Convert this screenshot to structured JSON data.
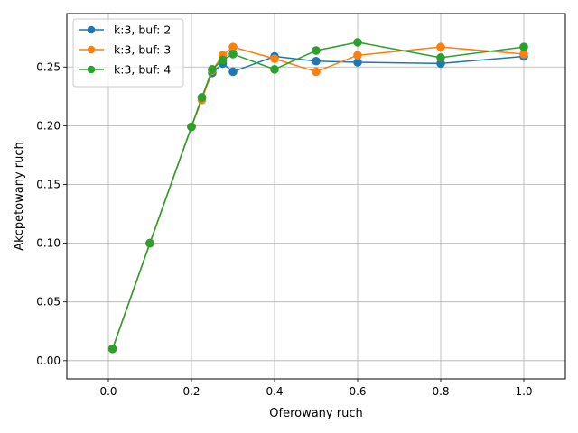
{
  "chart_data": {
    "type": "line",
    "title": "",
    "xlabel": "Oferowany ruch",
    "ylabel": "Akcpetowany ruch",
    "xlim": [
      -0.1,
      1.1
    ],
    "ylim": [
      -0.0155,
      0.2955
    ],
    "xticks": [
      0.0,
      0.2,
      0.4,
      0.6,
      0.8,
      1.0
    ],
    "xtick_labels": [
      "0.0",
      "0.2",
      "0.4",
      "0.6",
      "0.8",
      "1.0"
    ],
    "yticks": [
      0.0,
      0.05,
      0.1,
      0.15,
      0.2,
      0.25
    ],
    "ytick_labels": [
      "0.00",
      "0.05",
      "0.10",
      "0.15",
      "0.20",
      "0.25"
    ],
    "grid": true,
    "legend_position": "upper-left",
    "marker": "circle",
    "series": [
      {
        "name": "k:3, buf: 2",
        "color": "#1f77b4",
        "x": [
          0.01,
          0.1,
          0.2,
          0.225,
          0.25,
          0.275,
          0.3,
          0.4,
          0.5,
          0.6,
          0.8,
          1.0
        ],
        "y": [
          0.01,
          0.1,
          0.199,
          0.224,
          0.245,
          0.253,
          0.246,
          0.259,
          0.255,
          0.254,
          0.253,
          0.259
        ]
      },
      {
        "name": "k:3, buf: 3",
        "color": "#ff7f0e",
        "x": [
          0.01,
          0.1,
          0.2,
          0.225,
          0.25,
          0.275,
          0.3,
          0.4,
          0.5,
          0.6,
          0.8,
          1.0
        ],
        "y": [
          0.01,
          0.1,
          0.199,
          0.222,
          0.247,
          0.26,
          0.267,
          0.257,
          0.246,
          0.26,
          0.267,
          0.261
        ]
      },
      {
        "name": "k:3, buf: 4",
        "color": "#2ca02c",
        "x": [
          0.01,
          0.1,
          0.2,
          0.225,
          0.25,
          0.275,
          0.3,
          0.4,
          0.5,
          0.6,
          0.8,
          1.0
        ],
        "y": [
          0.01,
          0.1,
          0.199,
          0.224,
          0.248,
          0.256,
          0.261,
          0.248,
          0.264,
          0.271,
          0.258,
          0.267
        ]
      }
    ]
  }
}
